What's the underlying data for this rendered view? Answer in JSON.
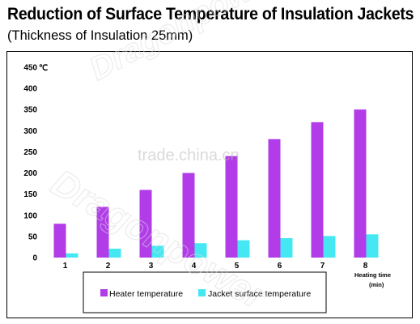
{
  "header": {
    "title": "Reduction of Surface Temperature of Insulation Jackets",
    "subtitle": "(Thickness of Insulation 25mm)"
  },
  "watermark": {
    "text_1": "Dragonpower",
    "text_2": "trade.china.cn",
    "text_3": "Dragonpower"
  },
  "chart_data": {
    "type": "bar",
    "categories": [
      "1",
      "2",
      "3",
      "4",
      "5",
      "6",
      "7",
      "8"
    ],
    "series": [
      {
        "name": "Heater temperature",
        "color": "#b13ce8",
        "values": [
          80,
          120,
          160,
          200,
          240,
          280,
          320,
          350
        ]
      },
      {
        "name": "Jacket surface temperature",
        "color": "#45e8f2",
        "values": [
          10,
          21,
          28,
          34,
          41,
          46,
          51,
          55
        ]
      }
    ],
    "ylim": [
      0,
      450
    ],
    "yticks": [
      0,
      50,
      100,
      150,
      200,
      250,
      300,
      350,
      400,
      450
    ],
    "yunit": "℃",
    "xlabel_line1": "Heating time",
    "xlabel_line2": "(min)",
    "legend_position": "bottom",
    "grid": false
  }
}
